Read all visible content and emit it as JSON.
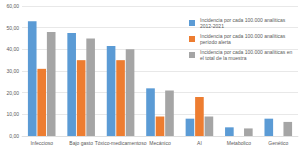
{
  "chart_data": {
    "type": "bar",
    "categories": [
      "Infeccioso",
      "Bajo gasto",
      "Tóxico-medicamentoso",
      "Mecánico",
      "AI",
      "Metabolico",
      "Genético"
    ],
    "series": [
      {
        "name": "Incidencia por cada 100.000 analíticas 2012-2021",
        "color": "#5b9bd5",
        "values": [
          53,
          47.5,
          41.5,
          22,
          8,
          4,
          8
        ]
      },
      {
        "name": "Incidencia por cada 100.000 analíticas período alerta",
        "color": "#ed7d31",
        "values": [
          31,
          35,
          35,
          9,
          18,
          null,
          null
        ]
      },
      {
        "name": "Incidencia por cada 100.000 analíticas en el total de la muestra",
        "color": "#a5a5a5",
        "values": [
          48,
          45,
          40,
          21,
          9,
          3.5,
          6.5
        ]
      }
    ],
    "ylim": [
      0,
      60
    ],
    "yticks": [
      {
        "value": 0,
        "label": "0,00"
      },
      {
        "value": 10,
        "label": "10,00"
      },
      {
        "value": 20,
        "label": "20,00"
      },
      {
        "value": 30,
        "label": "30,00"
      },
      {
        "value": 40,
        "label": "40,00"
      },
      {
        "value": 50,
        "label": "50,00"
      },
      {
        "value": 60,
        "label": "60,00"
      }
    ],
    "grid": true,
    "legend": "top-right"
  }
}
